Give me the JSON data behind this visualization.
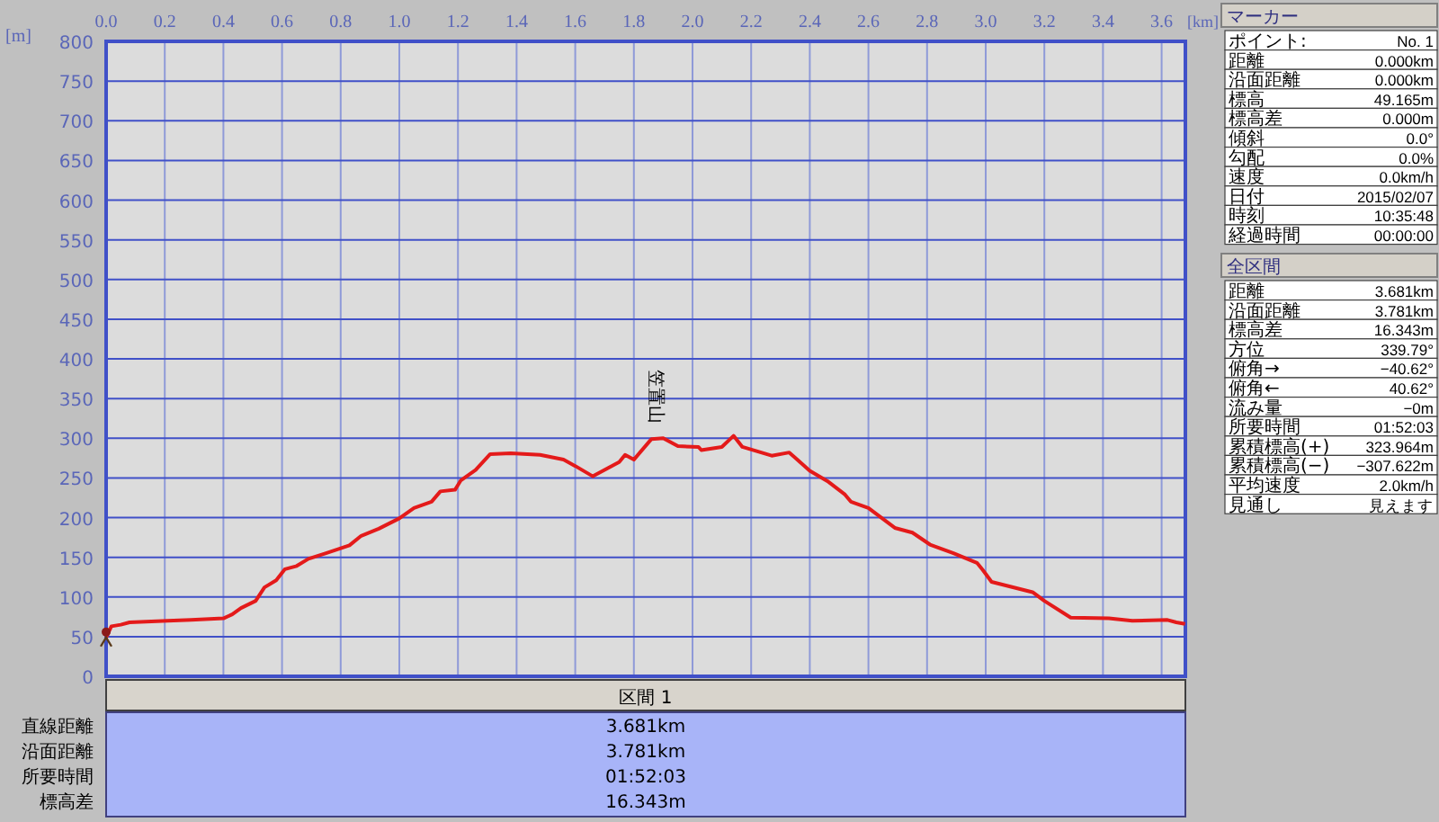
{
  "chart_data": [
    {
      "type": "line",
      "xlabel": "[km]",
      "ylabel": "[m]",
      "xlim": [
        0,
        3.681
      ],
      "ylim": [
        0,
        800
      ],
      "xticks": [
        {
          "value": 0,
          "label": "0.0"
        },
        {
          "value": 0.2,
          "label": "0.2"
        },
        {
          "value": 0.4,
          "label": "0.4"
        },
        {
          "value": 0.6,
          "label": "0.6"
        },
        {
          "value": 0.8,
          "label": "0.8"
        },
        {
          "value": 1,
          "label": "1.0"
        },
        {
          "value": 1.2,
          "label": "1.2"
        },
        {
          "value": 1.4,
          "label": "1.4"
        },
        {
          "value": 1.6,
          "label": "1.6"
        },
        {
          "value": 1.8,
          "label": "1.8"
        },
        {
          "value": 2,
          "label": "2.0"
        },
        {
          "value": 2.2,
          "label": "2.2"
        },
        {
          "value": 2.4,
          "label": "2.4"
        },
        {
          "value": 2.6,
          "label": "2.6"
        },
        {
          "value": 2.8,
          "label": "2.8"
        },
        {
          "value": 3,
          "label": "3.0"
        },
        {
          "value": 3.2,
          "label": "3.2"
        },
        {
          "value": 3.4,
          "label": "3.4"
        },
        {
          "value": 3.6,
          "label": "3.6"
        }
      ],
      "yticks": [
        0,
        50,
        100,
        150,
        200,
        250,
        300,
        350,
        400,
        450,
        500,
        550,
        600,
        650,
        700,
        750,
        800
      ],
      "grid": true,
      "marker": "none",
      "line_style": "solid",
      "annotations": [
        {
          "text": "笠置山",
          "x": 1.88,
          "y": 300
        }
      ],
      "series": [
        {
          "color": "#e41a1a",
          "x": [
            0,
            0.018,
            0.05,
            0.08,
            0.21,
            0.29,
            0.4,
            0.43,
            0.46,
            0.51,
            0.54,
            0.58,
            0.61,
            0.65,
            0.69,
            0.75,
            0.83,
            0.87,
            0.93,
            1.0,
            1.05,
            1.11,
            1.14,
            1.19,
            1.21,
            1.26,
            1.31,
            1.38,
            1.48,
            1.56,
            1.6,
            1.66,
            1.69,
            1.75,
            1.77,
            1.8,
            1.86,
            1.9,
            1.95,
            2.02,
            2.03,
            2.1,
            2.14,
            2.17,
            2.27,
            2.33,
            2.4,
            2.46,
            2.52,
            2.54,
            2.6,
            2.69,
            2.75,
            2.81,
            2.89,
            2.97,
            2.99,
            3.02,
            3.16,
            3.2,
            3.29,
            3.42,
            3.5,
            3.62,
            3.65,
            3.68
          ],
          "values": [
            49,
            63,
            65,
            68,
            70,
            71,
            73,
            78,
            86,
            95,
            112,
            121,
            135,
            139,
            148,
            155,
            165,
            177,
            186,
            199,
            212,
            220,
            233,
            235,
            247,
            260,
            280,
            281,
            279,
            273,
            265,
            252,
            258,
            270,
            279,
            273,
            299,
            300,
            290,
            289,
            285,
            289,
            303,
            289,
            278,
            282,
            259,
            246,
            229,
            220,
            212,
            187,
            181,
            166,
            155,
            143,
            134,
            119,
            106,
            95,
            74,
            73,
            70,
            71,
            68,
            66
          ]
        }
      ]
    },
    {
      "type": "other",
      "title": "マーカー",
      "annotations": [
        "ポイント:",
        "No. 1",
        "距離",
        "0.000km",
        "沿面距離",
        "0.000km",
        "標高",
        "49.165m",
        "標高差",
        "0.000m",
        "傾斜",
        "0.0°",
        "勾配",
        "0.0%",
        "速度",
        "0.0km/h",
        "日付",
        "2015/02/07",
        "時刻",
        "10:35:48",
        "経過時間",
        "00:00:00"
      ]
    },
    {
      "type": "other",
      "title": "全区間",
      "annotations": [
        "距離",
        "3.681km",
        "沿面距離",
        "3.781km",
        "標高差",
        "16.343m",
        "方位",
        "339.79°",
        "俯角→",
        "−40.62°",
        "俯角←",
        "40.62°",
        "流み量",
        "−0m",
        "所要時間",
        "01:52:03",
        "累積標高(+)",
        "323.964m",
        "累積標高(−)",
        "−307.622m",
        "平均速度",
        "2.0km/h",
        "見通し",
        "見えます"
      ]
    },
    {
      "type": "other",
      "title": "区間 1",
      "annotations": [
        "直線距離",
        "3.681km",
        "沿面距離",
        "3.781km",
        "所要時間",
        "01:52:03",
        "標高差",
        "16.343m"
      ]
    }
  ]
}
